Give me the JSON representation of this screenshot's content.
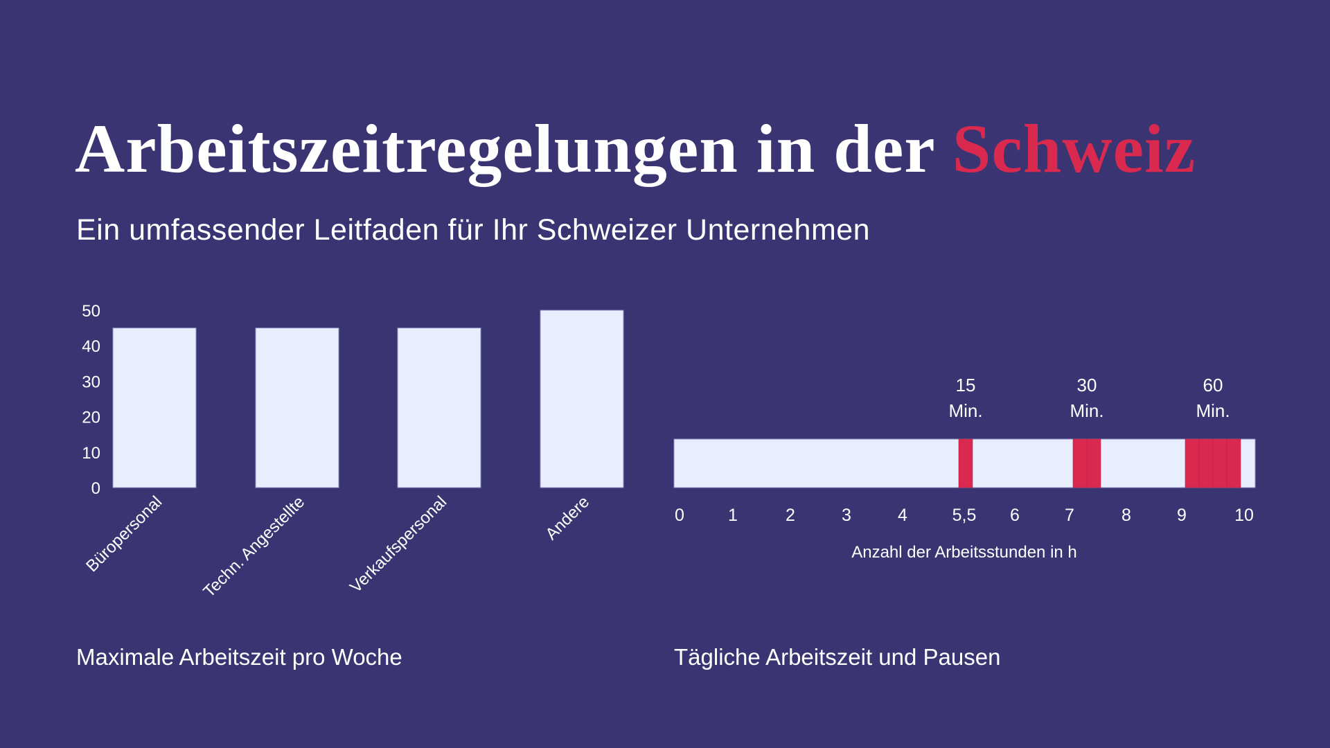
{
  "title": {
    "main": "Arbeitszeitregelungen in der",
    "accent": "Schweiz"
  },
  "subtitle": "Ein umfassender Leitfaden für Ihr Schweizer Unternehmen",
  "colors": {
    "background": "#3A3572",
    "bar": "#E8EEFD",
    "accent": "#D9294F",
    "text": "#FFFFFF"
  },
  "chart_data": [
    {
      "type": "bar",
      "caption": "Maximale Arbeitszeit pro Woche",
      "categories": [
        "Büropersonal",
        "Techn. Angestellte",
        "Verkaufspersonal",
        "Andere"
      ],
      "values": [
        45,
        45,
        45,
        50
      ],
      "yticks": [
        "0",
        "10",
        "20",
        "30",
        "40",
        "50"
      ],
      "ylim": [
        0,
        50
      ],
      "grid": false
    },
    {
      "type": "timeline",
      "caption": "Tägliche Arbeitszeit und Pausen",
      "xlabel": "Anzahl der Arbeitsstunden in h",
      "xticks": [
        "0",
        "1",
        "2",
        "3",
        "4",
        "5,5",
        "6",
        "7",
        "8",
        "9",
        "10"
      ],
      "xlim": [
        0,
        10
      ],
      "breaks": [
        {
          "after_hours": 5.5,
          "minutes": 15,
          "label_value": "15",
          "label_unit": "Min."
        },
        {
          "after_hours": 7,
          "minutes": 30,
          "label_value": "30",
          "label_unit": "Min."
        },
        {
          "after_hours": 9,
          "minutes": 60,
          "label_value": "60",
          "label_unit": "Min."
        }
      ]
    }
  ]
}
